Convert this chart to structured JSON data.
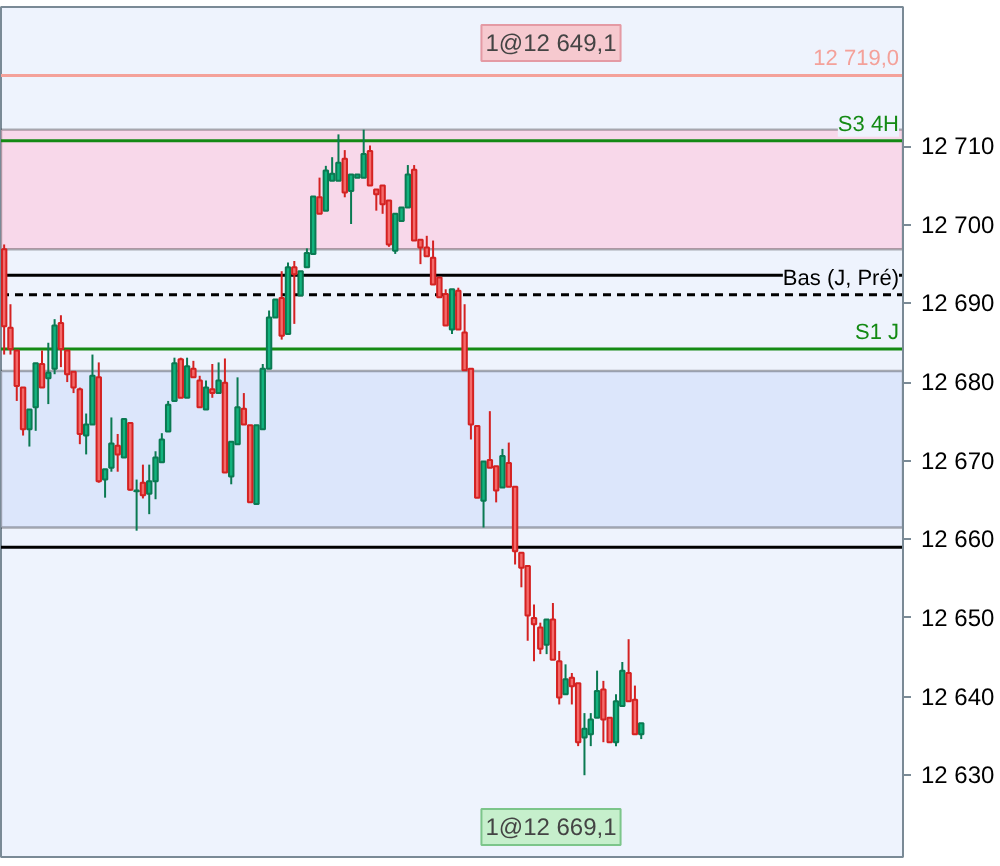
{
  "chart_data": {
    "type": "candlestick",
    "categories": [
      null,
      null,
      null,
      null,
      null,
      null,
      null,
      null,
      null,
      null,
      null,
      null,
      null,
      null,
      null,
      null,
      null,
      null,
      null,
      null,
      null,
      null,
      null,
      null,
      null,
      null,
      null,
      null,
      null,
      null,
      null,
      null,
      null,
      null,
      null,
      null,
      null,
      null,
      null,
      null,
      null,
      null,
      null,
      null,
      null,
      null,
      null,
      null,
      null,
      null,
      null,
      null,
      null,
      null,
      null,
      null,
      null,
      null,
      null,
      null,
      null,
      null,
      null,
      null,
      null,
      null,
      null,
      null,
      null,
      null,
      null,
      null,
      null,
      null,
      null,
      null,
      null,
      null,
      null,
      null,
      null,
      null,
      null,
      null,
      null,
      null,
      null,
      null,
      null,
      null,
      null,
      null,
      null,
      null,
      null,
      null,
      null,
      null,
      null,
      null,
      null,
      null,
      null,
      null,
      null,
      null,
      null,
      null,
      null,
      null,
      null,
      null,
      null,
      null,
      null,
      null,
      null,
      null,
      null,
      null,
      null,
      null,
      null,
      null,
      null,
      null,
      null,
      null,
      null,
      null,
      null,
      null,
      null,
      null,
      null,
      null,
      null,
      null,
      null,
      null,
      null,
      null,
      null
    ],
    "ohlc": [
      [
        12696.9,
        12697.5,
        12683.5,
        12687.1
      ],
      [
        12686.9,
        12689.9,
        12683.5,
        12684.2
      ],
      [
        12684.0,
        12684.0,
        12677.6,
        12679.5
      ],
      [
        12679.3,
        12679.3,
        12673.2,
        12674.0
      ],
      [
        12674.0,
        12676.5,
        12671.8,
        12676.5
      ],
      [
        12676.8,
        12682.4,
        12673.8,
        12682.4
      ],
      [
        12682.3,
        12684.0,
        12679.3,
        12679.3
      ],
      [
        12680.5,
        12685.0,
        12677.2,
        12681.2
      ],
      [
        12681.7,
        12688.0,
        12681.0,
        12687.2
      ],
      [
        12687.5,
        12688.5,
        12681.9,
        12684.2
      ],
      [
        12684.0,
        12684.0,
        12680.0,
        12681.0
      ],
      [
        12681.3,
        12681.3,
        12678.6,
        12679.3
      ],
      [
        12679.1,
        12679.3,
        12672.1,
        12673.4
      ],
      [
        12673.2,
        12676.0,
        12670.8,
        12674.6
      ],
      [
        12674.6,
        12683.5,
        12674.6,
        12680.8
      ],
      [
        12680.6,
        12682.5,
        12667.2,
        12667.4
      ],
      [
        12667.6,
        12668.9,
        12665.3,
        12668.9
      ],
      [
        12669.1,
        12675.5,
        12668.6,
        12672.2
      ],
      [
        12671.9,
        12673.4,
        12668.6,
        12670.8
      ],
      [
        12670.4,
        12675.3,
        12670.4,
        12675.3
      ],
      [
        12674.8,
        12674.8,
        12666.2,
        12666.3
      ],
      [
        12666.1,
        12667.6,
        12661.1,
        12666.2
      ],
      [
        12667.2,
        12669.5,
        12665.2,
        12665.6
      ],
      [
        12665.8,
        12669.5,
        12663.2,
        12667.4
      ],
      [
        12667.4,
        12671.2,
        12665.1,
        12670.4
      ],
      [
        12669.8,
        12673.5,
        12669.8,
        12672.7
      ],
      [
        12673.7,
        12677.6,
        12673.7,
        12677.1
      ],
      [
        12677.6,
        12683.1,
        12677.6,
        12682.4
      ],
      [
        12682.9,
        12683.1,
        12678.0,
        12678.0
      ],
      [
        12678.0,
        12683.1,
        12678.0,
        12682.0
      ],
      [
        12681.7,
        12682.7,
        12680.6,
        12680.6
      ],
      [
        12680.2,
        12680.8,
        12676.8,
        12676.8
      ],
      [
        12676.5,
        12680.2,
        12676.5,
        12679.3
      ],
      [
        12679.1,
        12682.3,
        12678.0,
        12678.6
      ],
      [
        12678.6,
        12682.5,
        12678.6,
        12680.2
      ],
      [
        12679.9,
        12683.0,
        12668.5,
        12668.5
      ],
      [
        12668.0,
        12672.4,
        12667.0,
        12672.4
      ],
      [
        12672.1,
        12680.6,
        12672.1,
        12676.8
      ],
      [
        12676.6,
        12678.6,
        12674.6,
        12674.6
      ],
      [
        12674.5,
        12674.5,
        12664.7,
        12664.7
      ],
      [
        12664.5,
        12674.5,
        12664.5,
        12674.5
      ],
      [
        12674.0,
        12682.3,
        12674.0,
        12681.7
      ],
      [
        12681.7,
        12689.1,
        12681.7,
        12688.2
      ],
      [
        12688.2,
        12690.5,
        12688.2,
        12690.5
      ],
      [
        12690.7,
        12694.1,
        12685.4,
        12685.9
      ],
      [
        12686.1,
        12695.2,
        12686.1,
        12694.6
      ],
      [
        12694.6,
        12695.4,
        12687.4,
        12693.7
      ],
      [
        12691.0,
        12694.1,
        12691.0,
        12694.1
      ],
      [
        12694.6,
        12697.0,
        12694.6,
        12696.4
      ],
      [
        12696.3,
        12703.6,
        12696.3,
        12703.6
      ],
      [
        12703.5,
        12706.0,
        12701.4,
        12701.4
      ],
      [
        12701.8,
        12707.5,
        12701.8,
        12706.9
      ],
      [
        12705.6,
        12708.6,
        12705.6,
        12706.5
      ],
      [
        12705.6,
        12711.5,
        12705.6,
        12707.9
      ],
      [
        12708.4,
        12709.5,
        12703.5,
        12704.1
      ],
      [
        12704.3,
        12706.4,
        12700.1,
        12706.4
      ],
      [
        12706.0,
        12706.4,
        12706.0,
        12706.4
      ],
      [
        12706.0,
        12712.1,
        12706.0,
        12709.0
      ],
      [
        12709.4,
        12710.1,
        12705.0,
        12705.0
      ],
      [
        12704.5,
        12704.5,
        12701.8,
        12703.9
      ],
      [
        12705.0,
        12705.0,
        12701.4,
        12702.6
      ],
      [
        12703.1,
        12703.1,
        12697.2,
        12697.5
      ],
      [
        12696.7,
        12701.4,
        12696.3,
        12701.4
      ],
      [
        12700.5,
        12702.2,
        12700.5,
        12702.2
      ],
      [
        12702.2,
        12707.6,
        12702.2,
        12706.4
      ],
      [
        12707.0,
        12707.6,
        12698.0,
        12698.0
      ],
      [
        12698.1,
        12698.1,
        12695.0,
        12697.1
      ],
      [
        12697.1,
        12698.6,
        12696.0,
        12696.0
      ],
      [
        12695.8,
        12698.0,
        12692.4,
        12692.4
      ],
      [
        12693.3,
        12693.3,
        12690.8,
        12690.8
      ],
      [
        12691.2,
        12691.8,
        12687.2,
        12687.2
      ],
      [
        12686.7,
        12691.8,
        12686.1,
        12691.8
      ],
      [
        12691.6,
        12692.0,
        12686.7,
        12686.7
      ],
      [
        12686.3,
        12689.9,
        12681.5,
        12681.5
      ],
      [
        12681.7,
        12681.7,
        12672.7,
        12674.6
      ],
      [
        12674.4,
        12674.4,
        12665.3,
        12665.3
      ],
      [
        12664.9,
        12669.9,
        12661.5,
        12669.9
      ],
      [
        12670.1,
        12676.3,
        12669.1,
        12669.1
      ],
      [
        12669.3,
        12669.3,
        12664.7,
        12666.2
      ],
      [
        12666.6,
        12671.5,
        12666.6,
        12670.6
      ],
      [
        12669.7,
        12672.3,
        12666.7,
        12666.7
      ],
      [
        12666.7,
        12666.7,
        12656.8,
        12658.5
      ],
      [
        12658.3,
        12658.3,
        12653.9,
        12656.4
      ],
      [
        12656.6,
        12656.6,
        12647.1,
        12650.3
      ],
      [
        12650.0,
        12651.7,
        12644.5,
        12649.2
      ],
      [
        12648.8,
        12649.4,
        12645.4,
        12646.1
      ],
      [
        12646.6,
        12649.8,
        12645.4,
        12649.8
      ],
      [
        12649.8,
        12651.9,
        12644.7,
        12644.7
      ],
      [
        12644.5,
        12645.8,
        12639.0,
        12639.9
      ],
      [
        12640.3,
        12644.1,
        12640.3,
        12642.2
      ],
      [
        12642.4,
        12643.0,
        12639.0,
        12641.3
      ],
      [
        12641.7,
        12641.7,
        12633.7,
        12634.2
      ],
      [
        12634.8,
        12637.9,
        12630.0,
        12635.9
      ],
      [
        12635.2,
        12637.9,
        12633.7,
        12637.1
      ],
      [
        12637.3,
        12643.3,
        12637.3,
        12640.7
      ],
      [
        12640.9,
        12642.0,
        12634.2,
        12637.1
      ],
      [
        12637.3,
        12637.3,
        12634.2,
        12634.2
      ],
      [
        12634.2,
        12640.3,
        12633.7,
        12639.4
      ],
      [
        12638.8,
        12644.4,
        12638.8,
        12643.3
      ],
      [
        12643.0,
        12647.3,
        12639.4,
        12639.4
      ],
      [
        12639.6,
        12641.4,
        12635.2,
        12635.2
      ],
      [
        12635.2,
        12636.6,
        12634.6,
        12636.6
      ],
      null,
      null,
      null,
      null,
      null,
      null,
      null,
      null,
      null,
      null,
      null,
      null,
      null,
      null,
      null,
      null,
      null,
      null,
      null,
      null,
      null,
      null,
      null,
      null,
      null,
      null,
      null,
      null,
      null,
      null,
      null,
      null,
      null,
      null,
      null,
      null,
      null,
      null,
      null,
      null,
      null
    ],
    "ylim": [
      12619.6,
      12727.7
    ],
    "yticks": [
      {
        "value": 12630,
        "label": "12 630"
      },
      {
        "value": 12640,
        "label": "12 640"
      },
      {
        "value": 12650,
        "label": "12 650"
      },
      {
        "value": 12660,
        "label": "12 660"
      },
      {
        "value": 12670,
        "label": "12 670"
      },
      {
        "value": 12680,
        "label": "12 680"
      },
      {
        "value": 12690,
        "label": "12 690"
      },
      {
        "value": 12700,
        "label": "12 700"
      },
      {
        "value": 12710,
        "label": "12 710"
      }
    ],
    "tick_labels": "y",
    "grid": false,
    "bands": [
      {
        "axis": "y",
        "from": 12696.9,
        "to": 12712.1,
        "color": "#f8d8ea"
      },
      {
        "axis": "y",
        "from": 12661.5,
        "to": 12681.4,
        "color": "#dce6fb"
      }
    ],
    "ref_lines": [
      {
        "axis": "y",
        "value": 12719.0,
        "label": "12 719,0",
        "color": "#f4a19a",
        "line_style": "solid"
      },
      {
        "axis": "y",
        "value": 12710.7,
        "label": "S3 4H",
        "color": "#148a14",
        "line_style": "solid"
      },
      {
        "axis": "y",
        "value": 12693.6,
        "color": "#000000",
        "line_style": "solid"
      },
      {
        "axis": "y",
        "value": 12691.1,
        "label": "Bas (J, Pré)",
        "color": "#000000",
        "line_style": "dashed"
      },
      {
        "axis": "y",
        "value": 12684.2,
        "label": "S1 J",
        "color": "#148a14",
        "line_style": "solid"
      },
      {
        "axis": "y",
        "value": 12659.0,
        "color": "#000000",
        "line_style": "solid"
      }
    ],
    "annotations": [
      "1@12 649,1",
      "1@12 669,1"
    ]
  }
}
